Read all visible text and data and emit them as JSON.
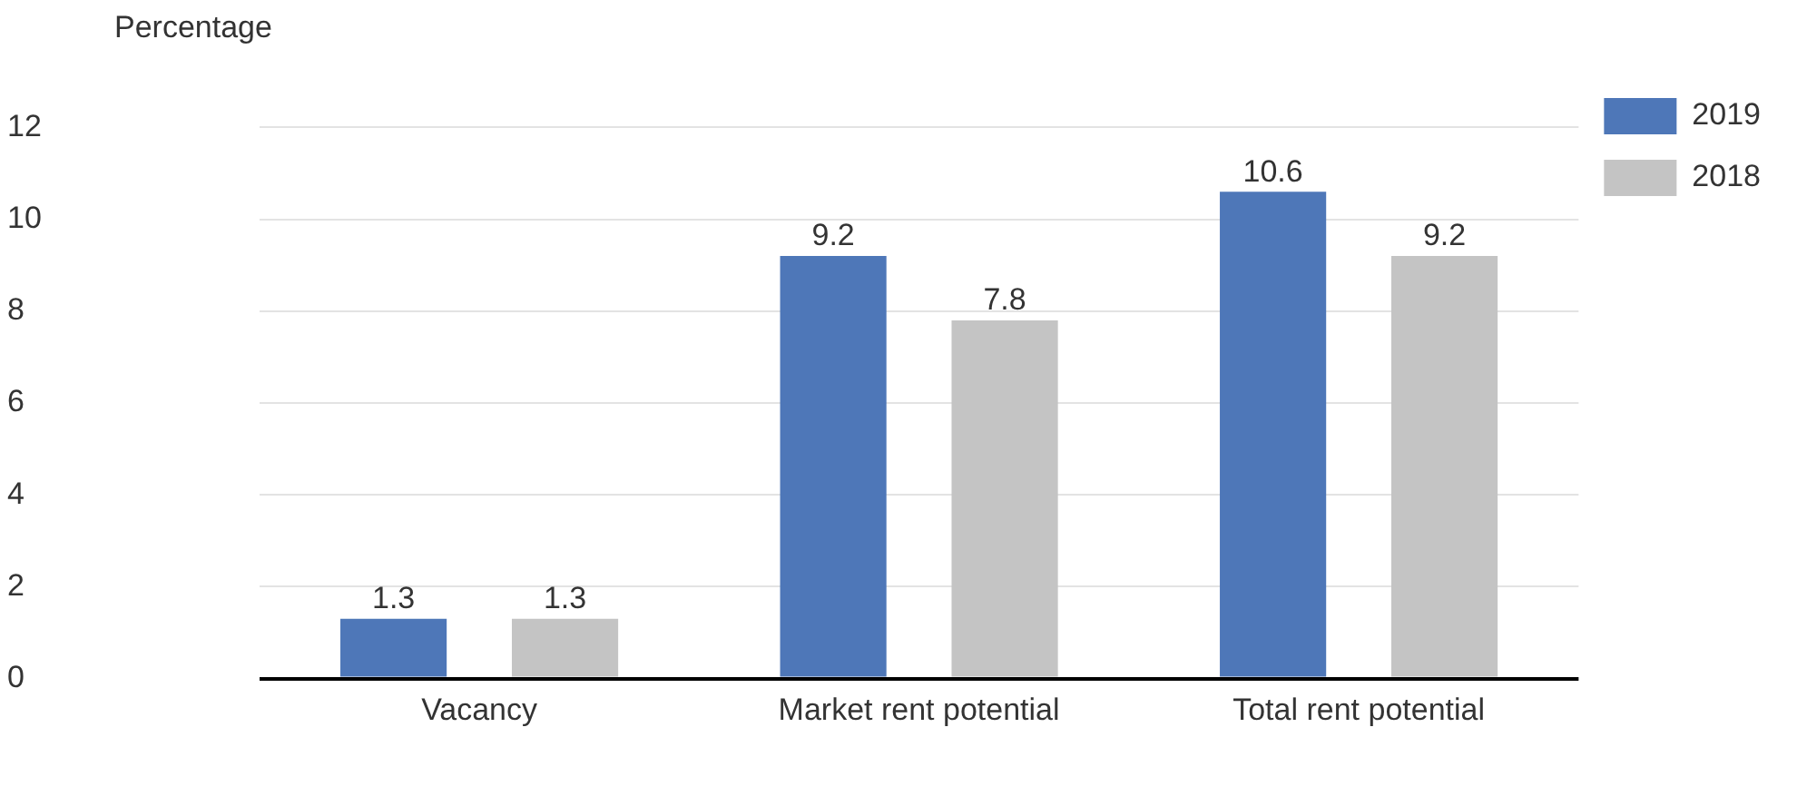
{
  "chart_data": {
    "type": "bar",
    "ylabel": "Percentage",
    "categories": [
      "Vacancy",
      "Market rent potential",
      "Total rent potential"
    ],
    "series": [
      {
        "name": "2019",
        "color": "#4e77b8",
        "values": [
          1.3,
          9.2,
          10.6
        ]
      },
      {
        "name": "2018",
        "color": "#c4c4c4",
        "values": [
          1.3,
          7.8,
          9.2
        ]
      }
    ],
    "ylim": [
      0,
      12
    ],
    "yticks": [
      0,
      2,
      4,
      6,
      8,
      10,
      12
    ],
    "grid": "y",
    "legend": "top right",
    "data_labels": true
  }
}
